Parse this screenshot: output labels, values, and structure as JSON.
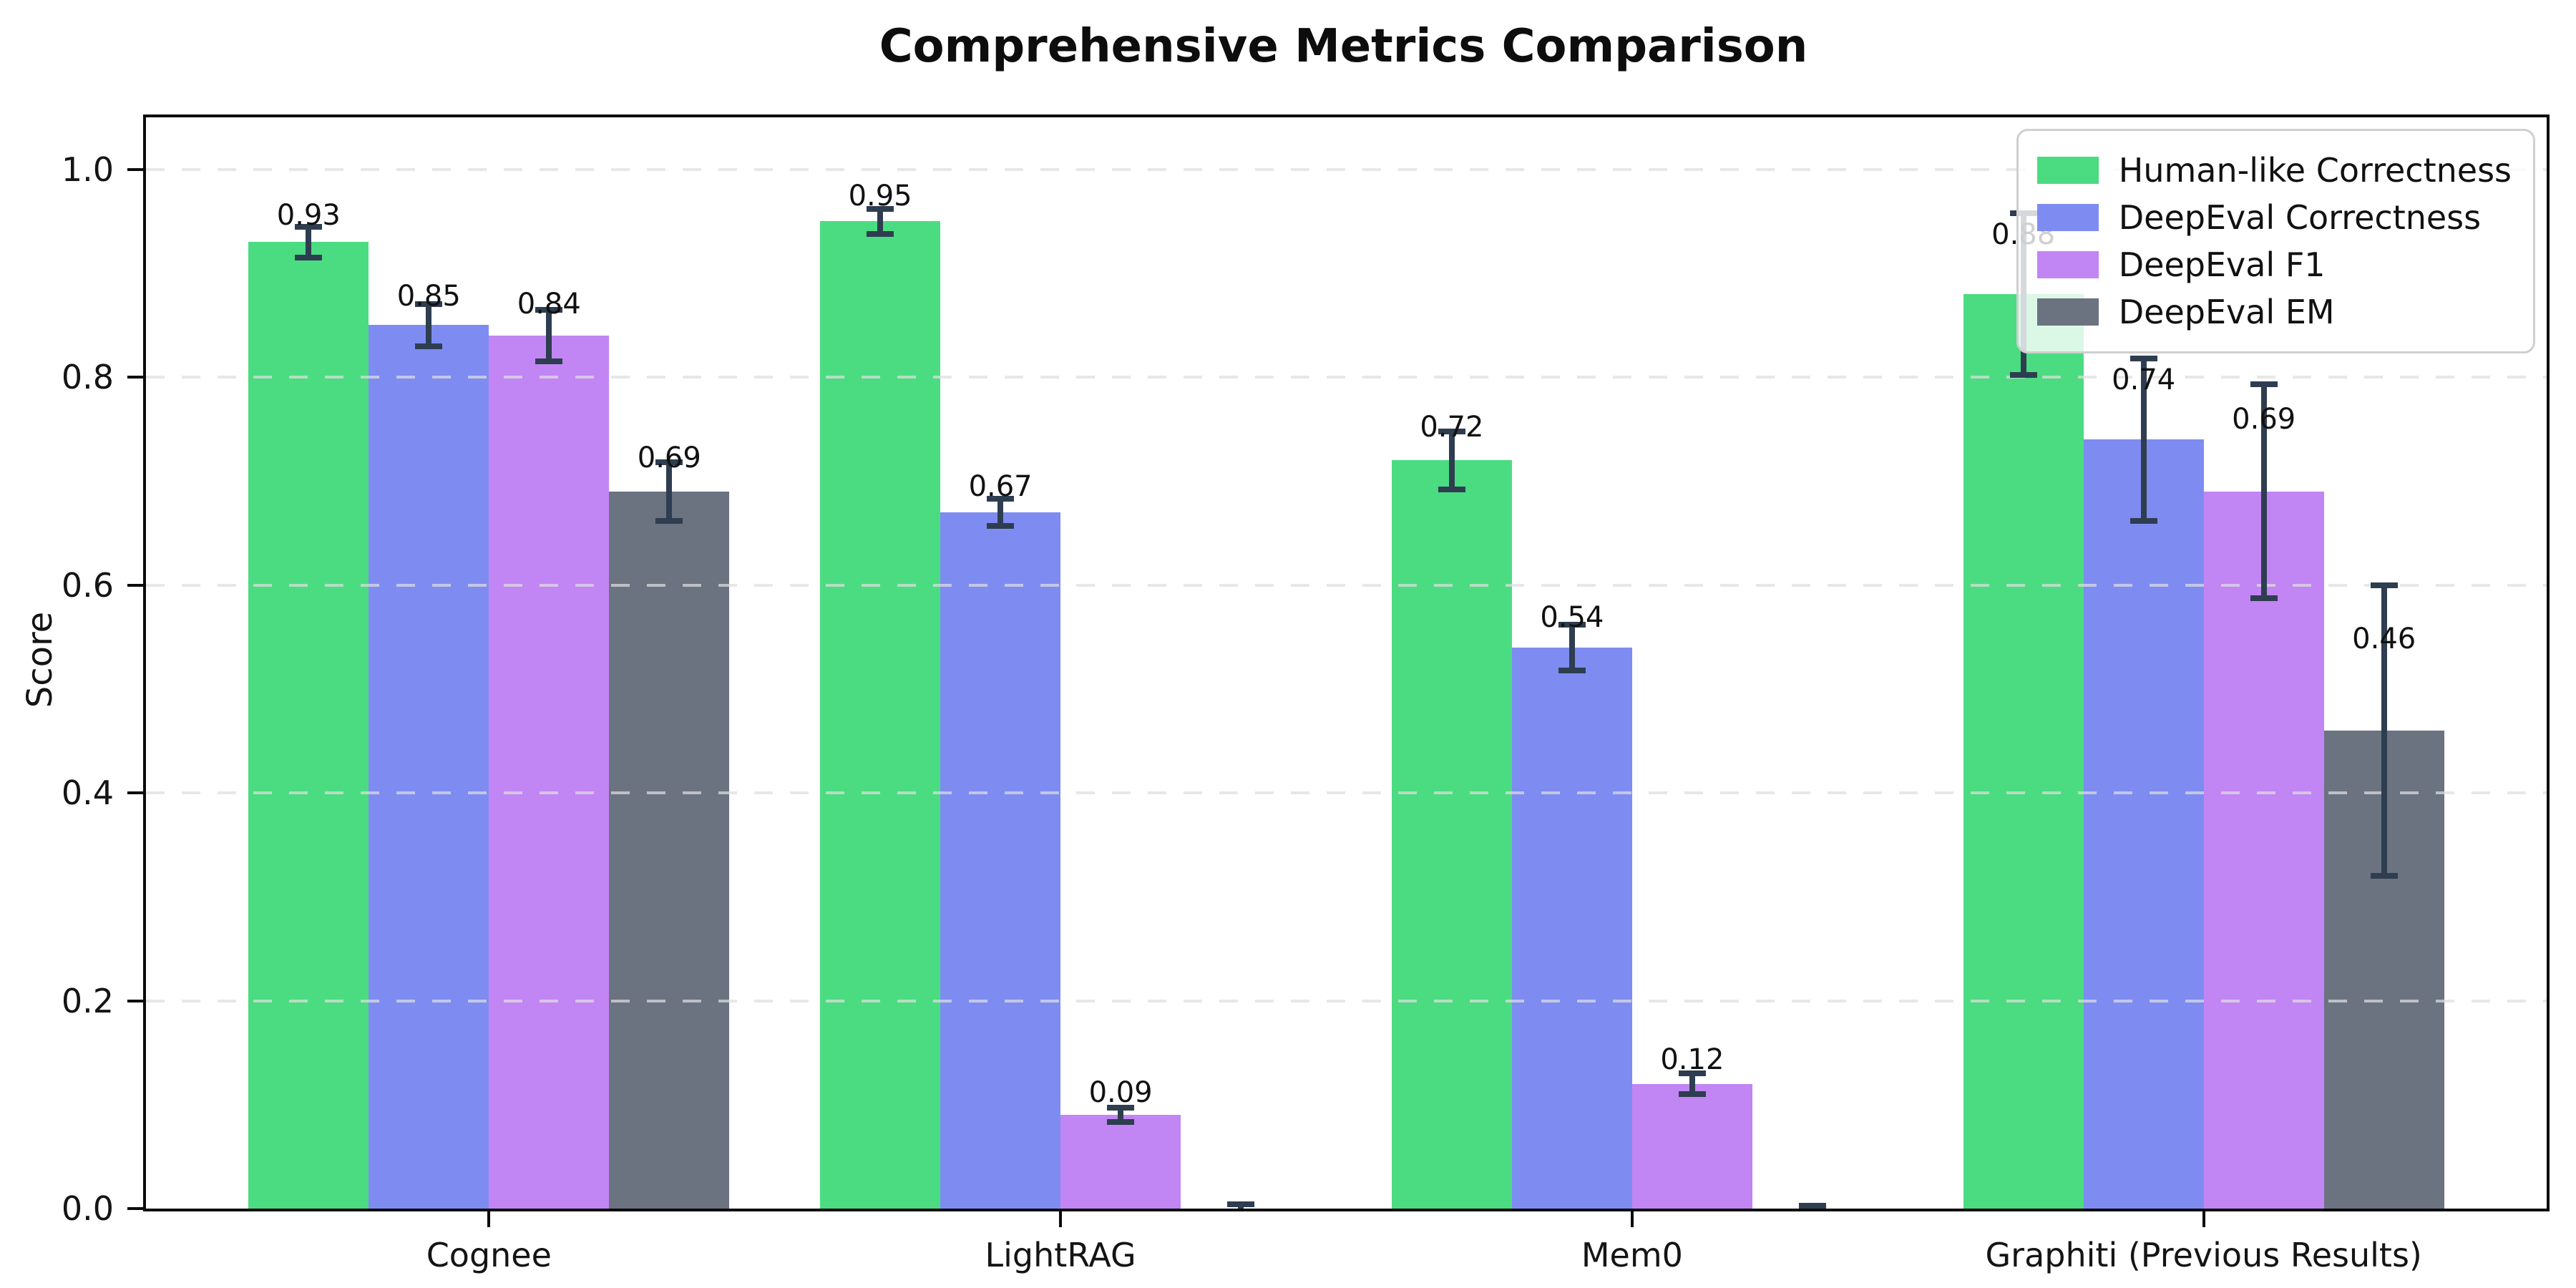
{
  "title": "Comprehensive Metrics Comparison",
  "chart_data": {
    "type": "bar",
    "title": "Comprehensive Metrics Comparison",
    "xlabel": "",
    "ylabel": "Score",
    "ylim": [
      0,
      1.05
    ],
    "yticks": [
      "0.0",
      "0.2",
      "0.4",
      "0.6",
      "0.8",
      "1.0"
    ],
    "grid": "horizontal-dashed",
    "legend_position": "upper right",
    "categories": [
      "Cognee",
      "LightRAG",
      "Mem0",
      "Graphiti (Previous Results)"
    ],
    "series": [
      {
        "name": "Human-like Correctness",
        "color": "#4bdc81",
        "values": [
          0.93,
          0.95,
          0.72,
          0.88
        ],
        "errors": [
          0.015,
          0.012,
          0.028,
          0.078
        ],
        "labels": [
          "0.93",
          "0.95",
          "0.72",
          "0.88"
        ]
      },
      {
        "name": "DeepEval Correctness",
        "color": "#7e8cf2",
        "values": [
          0.85,
          0.67,
          0.54,
          0.74
        ],
        "errors": [
          0.02,
          0.013,
          0.022,
          0.078
        ],
        "labels": [
          "0.85",
          "0.67",
          "0.54",
          "0.74"
        ]
      },
      {
        "name": "DeepEval F1",
        "color": "#c285f4",
        "values": [
          0.84,
          0.09,
          0.12,
          0.69
        ],
        "errors": [
          0.025,
          0.007,
          0.01,
          0.103
        ],
        "labels": [
          "0.84",
          "0.09",
          "0.12",
          "0.69"
        ]
      },
      {
        "name": "DeepEval EM",
        "color": "#6b7280",
        "values": [
          0.69,
          0.0,
          0.0,
          0.46
        ],
        "errors": [
          0.028,
          0.004,
          0.003,
          0.14
        ],
        "labels": [
          "0.69",
          "",
          "",
          "0.46"
        ]
      }
    ],
    "colors": {
      "error_bar": "#2e3d50",
      "gridline": "#dedede",
      "spine": "#0b0b0b"
    }
  }
}
